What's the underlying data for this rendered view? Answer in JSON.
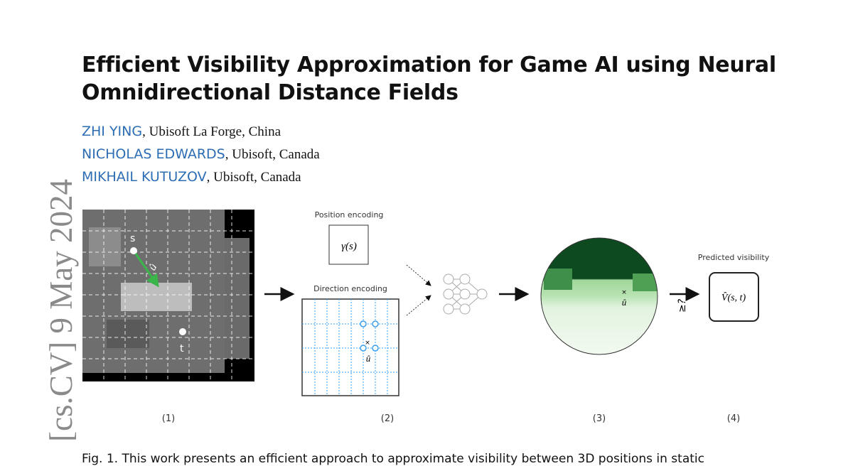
{
  "title_lines": [
    "Efficient Visibility Approximation for Game AI using Neural",
    "Omnidirectional Distance Fields"
  ],
  "authors": [
    {
      "name": "ZHI YING",
      "affiliation": ", Ubisoft La Forge, China"
    },
    {
      "name": "NICHOLAS EDWARDS",
      "affiliation": ", Ubisoft, Canada"
    },
    {
      "name": "MIKHAIL KUTUZOV",
      "affiliation": ", Ubisoft, Canada"
    }
  ],
  "arxiv_stamp": "[cs.CV]  9 May 2024",
  "figure": {
    "panel1": {
      "s_label": "s",
      "t_label": "t",
      "u_label": "û"
    },
    "position_encoding_label": "Position encoding",
    "position_encoding_formula": "γ(s)",
    "direction_encoding_label": "Direction encoding",
    "direction_u_label": "û",
    "panel3_u_label": "û",
    "arrow_label": "≥?",
    "predicted_visibility_label": "Predicted visibility",
    "predicted_formula": "V̂(s, t)",
    "panel_labels": [
      "(1)",
      "(2)",
      "(3)",
      "(4)"
    ],
    "colors": {
      "author": "#2c6db3",
      "grid": "#3aa0f0",
      "green_dark": "#0d4a1f",
      "green_light": "#e6f5e4",
      "arrow_green": "#39b54a"
    }
  },
  "caption": "Fig. 1. This work presents an efficient approach to approximate visibility between 3D positions in static"
}
